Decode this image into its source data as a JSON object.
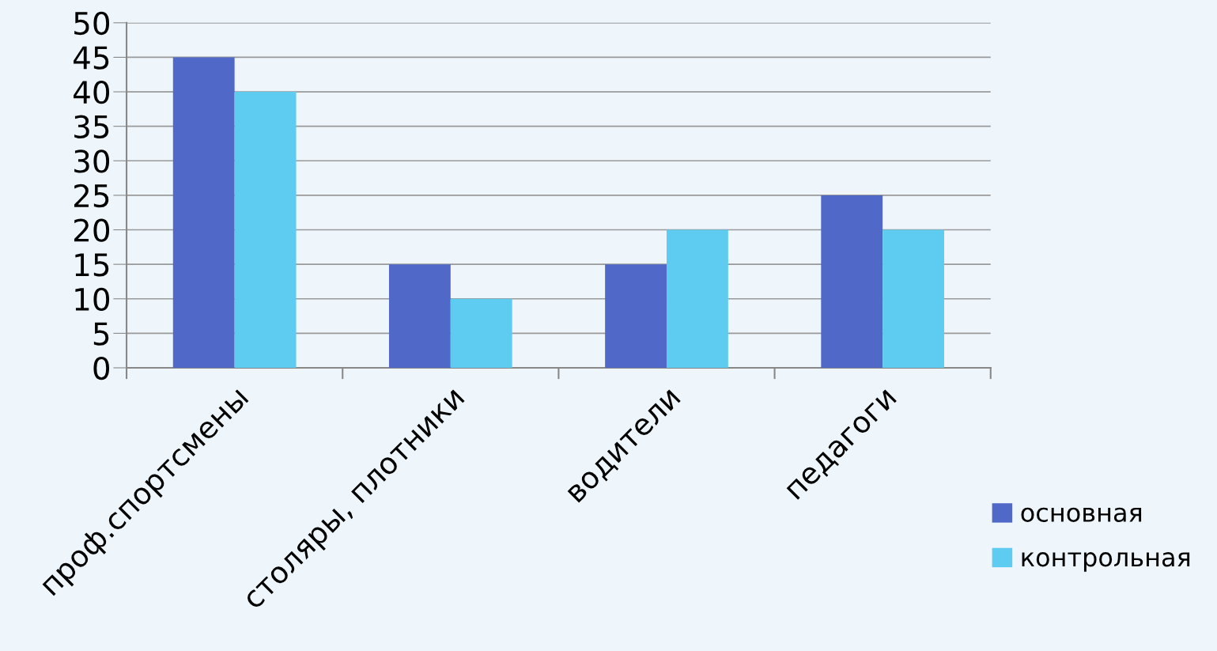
{
  "chart_data": {
    "type": "bar",
    "categories": [
      "проф.спортсмены",
      "столяры, плотники",
      "водители",
      "педагоги"
    ],
    "series": [
      {
        "name": "основная",
        "color": "#5068c8",
        "values": [
          45,
          15,
          15,
          25
        ]
      },
      {
        "name": "контрольная",
        "color": "#5ecbf0",
        "values": [
          40,
          10,
          20,
          20
        ]
      }
    ],
    "ylim": [
      0,
      50
    ],
    "yticks": [
      0,
      5,
      10,
      15,
      20,
      25,
      30,
      35,
      40,
      45,
      50
    ],
    "grid": "y",
    "legend": "bottom right"
  }
}
